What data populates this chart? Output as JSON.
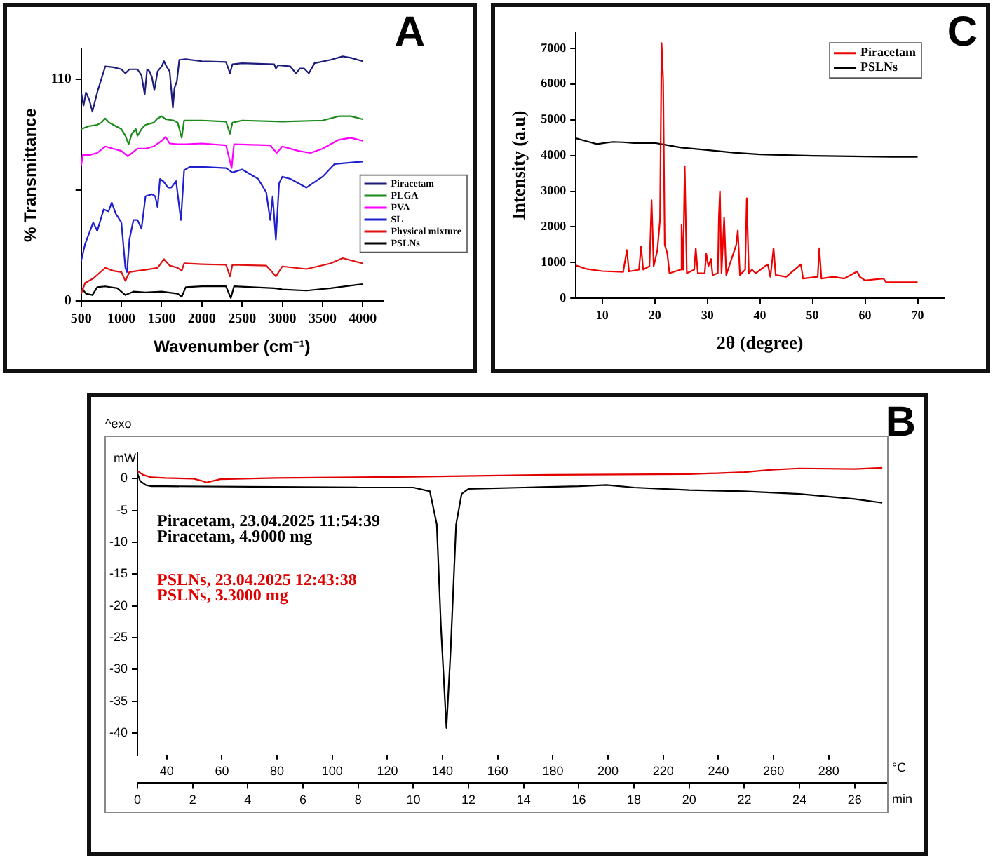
{
  "chart_data": [
    {
      "type": "line",
      "title": "A",
      "xlabel": "Wavenumber (cm⁻¹)",
      "ylabel": "% Transmittance",
      "xlim": [
        500,
        4250
      ],
      "xticks": [
        500,
        1000,
        1500,
        2000,
        2500,
        3000,
        3500,
        4000
      ],
      "ylim": [
        0,
        125
      ],
      "yticks": [
        0,
        {
          "value": 55,
          "label": null
        },
        110
      ],
      "legend": "right",
      "series": [
        {
          "name": "Piracetam",
          "color": "#1c1c7a",
          "x": [
            500,
            530,
            560,
            600,
            640,
            700,
            750,
            800,
            900,
            1000,
            1050,
            1100,
            1200,
            1250,
            1290,
            1320,
            1350,
            1380,
            1410,
            1450,
            1500,
            1530,
            1560,
            1600,
            1640,
            1660,
            1690,
            1720,
            1800,
            2000,
            2300,
            2350,
            2380,
            2500,
            2900,
            2920,
            2950,
            3100,
            3170,
            3220,
            3270,
            3330,
            3400,
            3600,
            3750,
            3850,
            4000
          ],
          "values": [
            103.5,
            97,
            103.5,
            100,
            94,
            103.5,
            110,
            116.4,
            116,
            115,
            113,
            115,
            115,
            112,
            102.5,
            115,
            114,
            111,
            104.6,
            114,
            116.4,
            119,
            116.4,
            114,
            96,
            105.7,
            109,
            119.7,
            120,
            119,
            118.6,
            113,
            117.5,
            118,
            117.5,
            115.4,
            117,
            116.4,
            113,
            115.4,
            115.4,
            113,
            118,
            119.7,
            121.4,
            120.7,
            119
          ]
        },
        {
          "name": "PLGA",
          "color": "#1a8a1a",
          "x": [
            500,
            600,
            700,
            750,
            800,
            850,
            900,
            1000,
            1050,
            1090,
            1130,
            1180,
            1200,
            1250,
            1300,
            1400,
            1450,
            1500,
            1550,
            1650,
            1700,
            1750,
            1780,
            2000,
            2300,
            2350,
            2380,
            2500,
            3000,
            3500,
            3700,
            3850,
            4000
          ],
          "values": [
            85.3,
            86.8,
            87.4,
            88.5,
            90.6,
            88.5,
            87.4,
            85.3,
            82,
            77.8,
            83,
            85.3,
            82,
            85.3,
            87.4,
            88.5,
            90.6,
            91.7,
            90.2,
            89.6,
            88.5,
            81,
            89.6,
            89.6,
            89,
            83,
            88.5,
            89.6,
            89,
            89.6,
            91.7,
            91.7,
            90.2
          ]
        },
        {
          "name": "PVA",
          "color": "#ff00ff",
          "x": [
            500,
            520,
            600,
            700,
            800,
            900,
            1000,
            1080,
            1200,
            1300,
            1400,
            1500,
            1550,
            1600,
            1700,
            1800,
            2000,
            2300,
            2370,
            2400,
            2850,
            2930,
            3000,
            3200,
            3350,
            3500,
            3700,
            3850,
            4000
          ],
          "values": [
            67,
            72.4,
            72.4,
            73.5,
            76.7,
            75.6,
            74.5,
            71.8,
            75.6,
            75.6,
            76.7,
            79.5,
            81.4,
            78.2,
            77.8,
            77.8,
            78.2,
            77.3,
            66,
            77.8,
            77.3,
            73.5,
            76.7,
            74.5,
            73.5,
            75.6,
            80,
            81,
            79.5
          ]
        },
        {
          "name": "SL",
          "color": "#1f1fd0",
          "x": [
            500,
            550,
            650,
            700,
            780,
            840,
            880,
            930,
            1000,
            1050,
            1070,
            1100,
            1150,
            1200,
            1250,
            1300,
            1380,
            1420,
            1450,
            1480,
            1520,
            1580,
            1620,
            1680,
            1740,
            1780,
            1850,
            2000,
            2300,
            2380,
            2500,
            2700,
            2800,
            2850,
            2880,
            2920,
            2960,
            3000,
            3100,
            3300,
            3500,
            3650,
            4000
          ],
          "values": [
            19.8,
            28.4,
            39,
            34.8,
            45.5,
            44.5,
            48.8,
            43.4,
            39,
            16.5,
            14.4,
            30.5,
            40.2,
            40.2,
            35.9,
            52,
            53,
            52,
            46.6,
            60.6,
            59.5,
            56.3,
            56.3,
            59.5,
            40.2,
            64.9,
            66.6,
            66.6,
            66,
            63.8,
            65.3,
            60.6,
            54,
            40.2,
            52,
            30.5,
            58.4,
            61.7,
            60.6,
            56.3,
            61.7,
            68,
            69.2
          ]
        },
        {
          "name": "Physical mixture",
          "color": "#e01010",
          "x": [
            500,
            550,
            650,
            800,
            900,
            1000,
            1050,
            1100,
            1200,
            1300,
            1450,
            1530,
            1600,
            1700,
            1750,
            1780,
            2000,
            2300,
            2350,
            2380,
            2800,
            2850,
            2920,
            3000,
            3300,
            3600,
            3750,
            4000
          ],
          "values": [
            3.7,
            9,
            11.2,
            16.5,
            15,
            14.4,
            10,
            14.4,
            15,
            15.5,
            16.5,
            20.8,
            17.6,
            16.5,
            15,
            18.7,
            18.3,
            18,
            12.2,
            18,
            17.6,
            15.5,
            12.2,
            17.2,
            15.9,
            18.7,
            21.3,
            18.7
          ]
        },
        {
          "name": "PSLNs",
          "color": "#000000",
          "x": [
            500,
            560,
            640,
            700,
            800,
            950,
            1050,
            1150,
            1300,
            1500,
            1700,
            1750,
            1800,
            2000,
            2300,
            2360,
            2400,
            2900,
            3000,
            3300,
            3600,
            4000
          ],
          "values": [
            6.9,
            3.7,
            3,
            6.9,
            7.3,
            6.4,
            3,
            4.7,
            4.3,
            4.7,
            3.7,
            2.1,
            6.9,
            7.3,
            7.3,
            1.5,
            7.3,
            6.4,
            5.8,
            5.2,
            6.4,
            8.4
          ]
        }
      ]
    },
    {
      "type": "line",
      "title": "C",
      "xlabel": "2θ (degree)",
      "ylabel": "Intensity (a.u)",
      "xlim": [
        5,
        75
      ],
      "xticks": [
        10,
        20,
        30,
        40,
        50,
        60,
        70
      ],
      "ylim": [
        0,
        7450
      ],
      "yticks": [
        0,
        1000,
        2000,
        3000,
        4000,
        5000,
        6000,
        7000
      ],
      "legend": "top right",
      "series": [
        {
          "name": "Piracetam",
          "color": "#ee0000",
          "x": [
            5,
            7,
            10,
            14,
            14.7,
            15.1,
            17,
            17.4,
            17.8,
            19,
            19.4,
            19.8,
            20.5,
            21,
            21.3,
            21.6,
            21.9,
            22.4,
            22.8,
            24.9,
            25.1,
            25.4,
            25.7,
            26.1,
            27.5,
            27.8,
            28.2,
            29.5,
            29.8,
            30.2,
            30.7,
            31,
            32,
            32.2,
            32.4,
            32.7,
            33.2,
            33.6,
            35.5,
            35.8,
            36.2,
            37.2,
            37.5,
            37.9,
            38.5,
            39.2,
            41,
            41.5,
            42,
            42.6,
            43,
            45,
            47.8,
            48.2,
            51,
            51.3,
            51.7,
            54,
            56,
            58.5,
            59,
            60,
            63.5,
            64,
            70
          ],
          "values": [
            920,
            820,
            760,
            740,
            1350,
            750,
            800,
            1450,
            800,
            900,
            2750,
            900,
            1350,
            2200,
            7150,
            6100,
            1500,
            1250,
            700,
            800,
            2050,
            800,
            3700,
            700,
            800,
            1400,
            700,
            700,
            1250,
            900,
            1100,
            650,
            700,
            2300,
            3000,
            700,
            2250,
            650,
            1500,
            1900,
            650,
            800,
            2800,
            700,
            800,
            700,
            900,
            950,
            600,
            1400,
            650,
            600,
            950,
            550,
            600,
            1400,
            550,
            600,
            550,
            750,
            600,
            500,
            550,
            450,
            450
          ]
        },
        {
          "name": "PSLNs",
          "color": "#000000",
          "x": [
            5,
            7,
            9,
            12,
            14,
            16,
            20,
            22,
            25,
            30,
            35,
            40,
            45,
            50,
            55,
            60,
            65,
            70
          ],
          "values": [
            4480,
            4400,
            4320,
            4380,
            4370,
            4350,
            4350,
            4300,
            4220,
            4150,
            4080,
            4030,
            4010,
            3990,
            3980,
            3970,
            3960,
            3960
          ]
        }
      ]
    },
    {
      "type": "line",
      "title": "B",
      "xlabel": "min",
      "ylabel": "mW",
      "x2label": "°C",
      "annotations": [
        "^exo"
      ],
      "xlim": [
        0,
        27.2
      ],
      "xticks": [
        0,
        2,
        4,
        6,
        8,
        10,
        12,
        14,
        16,
        18,
        20,
        22,
        24,
        26
      ],
      "x2lim": [
        29.4,
        301.4
      ],
      "x2ticks": [
        40,
        60,
        80,
        100,
        120,
        140,
        160,
        180,
        200,
        220,
        240,
        260,
        280
      ],
      "ylim": [
        -43.5,
        4
      ],
      "yticks": [
        0,
        -5,
        -10,
        -15,
        -20,
        -25,
        -30,
        -35,
        -40
      ],
      "legend": "top left",
      "series": [
        {
          "name": "Piracetam, 23.04.2025 11:54:39\nPiracetam, 4.9000 mg",
          "color": "#000000",
          "x": [
            0,
            0.1,
            0.3,
            0.5,
            1,
            5,
            8,
            10,
            10.6,
            10.85,
            11,
            11.2,
            11.35,
            11.55,
            11.75,
            12,
            14,
            16,
            17,
            18,
            20,
            22,
            24,
            26,
            27
          ],
          "values": [
            0.8,
            -0.4,
            -1,
            -1.2,
            -1.2,
            -1.3,
            -1.4,
            -1.4,
            -2,
            -7.2,
            -23.2,
            -39.2,
            -27.2,
            -7.2,
            -2.4,
            -1.6,
            -1.4,
            -1.2,
            -1,
            -1.4,
            -1.8,
            -2,
            -2.4,
            -3.2,
            -3.8
          ]
        },
        {
          "name": "PSLNs, 23.04.2025 12:43:38\nPSLNs, 3.3000 mg",
          "color": "#e00000",
          "x": [
            0,
            0.2,
            0.5,
            1,
            2,
            2.3,
            2.5,
            3,
            5,
            10,
            15,
            20,
            22,
            23,
            24,
            26,
            27
          ],
          "values": [
            1.2,
            0.6,
            0.2,
            0.1,
            0,
            -0.3,
            -0.6,
            -0.1,
            0.1,
            0.3,
            0.6,
            0.7,
            1,
            1.4,
            1.6,
            1.5,
            1.7
          ]
        }
      ]
    }
  ]
}
